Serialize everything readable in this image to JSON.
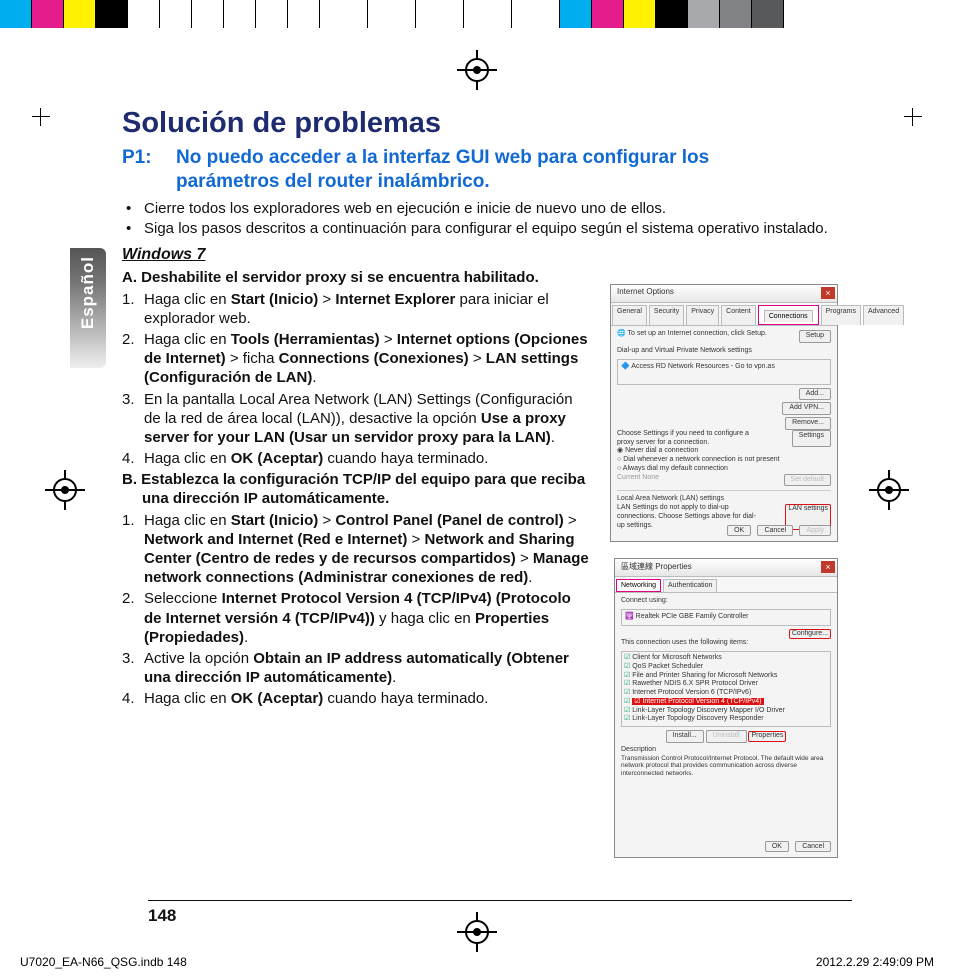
{
  "regbar_colors": [
    "#00aeef",
    "#e31b8b",
    "#fff200",
    "#000000",
    "#ffffff",
    "#ffffff",
    "#ffffff",
    "#ffffff",
    "#ffffff",
    "#ffffff",
    "#ffffff",
    "#ffffff",
    "#ffffff",
    "#ffffff",
    "#ffffff",
    "#00aeef",
    "#e31b8b",
    "#fff200",
    "#000000",
    "#a7a9ac",
    "#808285",
    "#58595b"
  ],
  "regbar_widths": [
    32,
    32,
    32,
    32,
    32,
    32,
    32,
    32,
    32,
    32,
    48,
    48,
    48,
    48,
    48,
    32,
    32,
    32,
    32,
    32,
    32,
    32
  ],
  "side_tab": "Español",
  "title": "Solución de problemas",
  "p1_label": "P1:",
  "p1_text": "No puedo acceder a la interfaz GUI web para configurar los parámetros del router inalámbrico.",
  "bullets": [
    "Cierre todos los exploradores web en ejecución e inicie de nuevo uno de ellos.",
    "Siga los pasos descritos a continuación para configurar el equipo según el sistema operativo instalado."
  ],
  "os": "Windows 7",
  "sectA": "A. Deshabilite el servidor proxy si se encuentra habilitado.",
  "stepsA": [
    {
      "pre": "Haga clic en ",
      "b1": "Start (Inicio)",
      "mid1": " > ",
      "b2": "Internet Explorer",
      "post": " para iniciar el explorador web."
    },
    {
      "pre": "Haga clic en ",
      "b1": "Tools (Herramientas)",
      "mid1": " > ",
      "b2": "Internet options (Opciones de Internet)",
      "mid2": " > ",
      "b3": "ficha ",
      "b3b": "Connections (Conexiones)",
      "mid3": " > ",
      "b4": "LAN settings (Configuración de LAN)",
      "post": "."
    },
    {
      "pre": "En la pantalla Local Area Network (LAN) Settings (Configuración de la red de área local (LAN)), desactive la opción ",
      "b1": "Use a proxy server for your LAN (Usar un servidor proxy para la LAN)",
      "post": "."
    },
    {
      "pre": "Haga clic en ",
      "b1": "OK (Aceptar)",
      "post": " cuando haya terminado."
    }
  ],
  "sectB": "B. Establezca la configuración TCP/IP del equipo para que reciba una dirección IP automáticamente.",
  "stepsB": [
    {
      "pre": "Haga clic en ",
      "b1": "Start (Inicio)",
      "mid1": " > ",
      "b2": "Control Panel (Panel de control)",
      "mid2": " > ",
      "b3": "Network and Internet (Red e Internet)",
      "mid3": " > ",
      "b4": "Network and Sharing Center (Centro de redes y de recursos compartidos)",
      "mid4": " > ",
      "b5": "Manage network connections (Administrar conexiones de red)",
      "post": "."
    },
    {
      "pre": "Seleccione ",
      "b1": "Internet Protocol Version 4 (TCP/IPv4) (Protocolo de Internet versión 4 (TCP/IPv4))",
      "post": " y haga clic en ",
      "b2": "Properties (Propiedades)",
      "post2": "."
    },
    {
      "pre": "Active la opción ",
      "b1": "Obtain an IP address automatically (Obtener una dirección IP automáticamente)",
      "post": "."
    },
    {
      "pre": "Haga clic en ",
      "b1": "OK (Aceptar)",
      "post": " cuando haya terminado."
    }
  ],
  "shot1": {
    "title": "Internet Options",
    "tabs": [
      "General",
      "Security",
      "Privacy",
      "Content",
      "Connections",
      "Programs",
      "Advanced"
    ],
    "active_tab": "Connections",
    "line1": "To set up an Internet connection, click Setup.",
    "setup": "Setup",
    "group1": "Dial-up and Virtual Private Network settings",
    "item1": "Access RD Network Resources - Go to vpn.as",
    "add": "Add...",
    "addvpn": "Add VPN...",
    "remove": "Remove...",
    "choose": "Choose Settings if you need to configure a proxy server for a connection.",
    "settings": "Settings",
    "r1": "Never dial a connection",
    "r2": "Dial whenever a network connection is not present",
    "r3": "Always dial my default connection",
    "current": "Current      None",
    "setdef": "Set default",
    "lan_group": "Local Area Network (LAN) settings",
    "lan_note": "LAN Settings do not apply to dial-up connections. Choose Settings above for dial-up settings.",
    "lan_btn": "LAN settings",
    "ok": "OK",
    "cancel": "Cancel",
    "apply": "Apply"
  },
  "shot2": {
    "title": "區域連線 Properties",
    "tabs": [
      "Networking",
      "Authentication"
    ],
    "active_tab": "Networking",
    "connect": "Connect using:",
    "nic": "Realtek PCIe GBE Family Controller",
    "config": "Configure...",
    "uses": "This connection uses the following items:",
    "items": [
      "Client for Microsoft Networks",
      "QoS Packet Scheduler",
      "File and Printer Sharing for Microsoft Networks",
      "Rawether NDIS 6.X SPR Protocol Driver",
      "Internet Protocol Version 6 (TCP/IPv6)",
      "Internet Protocol Version 4 (TCP/IPv4)",
      "Link-Layer Topology Discovery Mapper I/O Driver",
      "Link-Layer Topology Discovery Responder"
    ],
    "hilite_index": 5,
    "install": "Install...",
    "uninstall": "Uninstall",
    "props": "Properties",
    "desc_label": "Description",
    "desc": "Transmission Control Protocol/Internet Protocol. The default wide area network protocol that provides communication across diverse interconnected networks.",
    "ok": "OK",
    "cancel": "Cancel"
  },
  "pagenum": "148",
  "footer_left": "U7020_EA-N66_QSG.indb   148",
  "footer_right": "2012.2.29   2:49:09 PM"
}
